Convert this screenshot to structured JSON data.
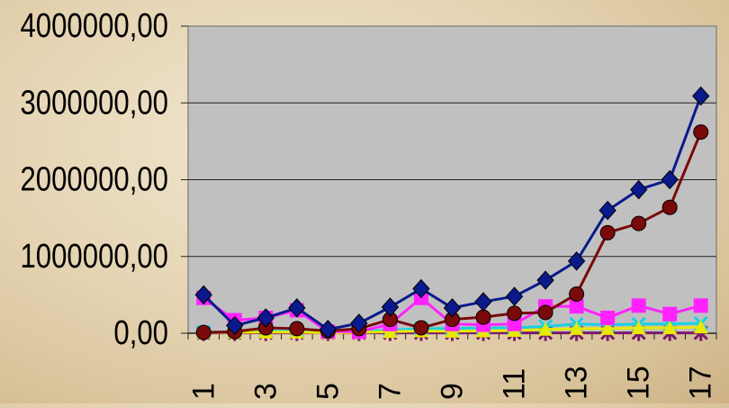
{
  "chart_data": {
    "type": "line",
    "x": [
      1,
      2,
      3,
      4,
      5,
      6,
      7,
      8,
      9,
      10,
      11,
      12,
      13,
      14,
      15,
      16,
      17
    ],
    "x_tick_labels": [
      "1",
      "3",
      "5",
      "7",
      "9",
      "11",
      "13",
      "15",
      "17"
    ],
    "y_tick_labels": [
      "0,00",
      "1000000,00",
      "2000000,00",
      "3000000,00",
      "4000000,00"
    ],
    "ylim": [
      0,
      4000000
    ],
    "grid": true,
    "series": [
      {
        "marker": "diamond",
        "color": "#0a1a8c",
        "values": [
          500000,
          100000,
          200000,
          330000,
          50000,
          130000,
          340000,
          580000,
          330000,
          410000,
          480000,
          690000,
          940000,
          1600000,
          1870000,
          2000000,
          3090000
        ]
      },
      {
        "marker": "circle",
        "color": "#7a0a0a",
        "values": [
          10000,
          20000,
          70000,
          60000,
          30000,
          60000,
          180000,
          70000,
          180000,
          210000,
          260000,
          270000,
          510000,
          1310000,
          1430000,
          1640000,
          2620000
        ]
      },
      {
        "marker": "square",
        "color": "#ff22ff",
        "values": [
          460000,
          170000,
          200000,
          300000,
          20000,
          20000,
          120000,
          460000,
          120000,
          110000,
          120000,
          350000,
          350000,
          200000,
          360000,
          250000,
          360000
        ]
      },
      {
        "marker": "triangle",
        "color": "#e8e800",
        "values": [
          10000,
          10000,
          15000,
          15000,
          5000,
          10000,
          20000,
          30000,
          25000,
          30000,
          35000,
          50000,
          60000,
          60000,
          70000,
          70000,
          80000
        ]
      },
      {
        "marker": "x",
        "color": "#1ad0e0",
        "values": [
          15000,
          20000,
          25000,
          30000,
          10000,
          20000,
          40000,
          60000,
          60000,
          70000,
          70000,
          90000,
          120000,
          110000,
          120000,
          120000,
          130000
        ]
      },
      {
        "marker": "asterisk",
        "color": "#7a1a6a",
        "values": [
          5000,
          5000,
          5000,
          5000,
          5000,
          5000,
          5000,
          5000,
          5000,
          5000,
          5000,
          5000,
          5000,
          5000,
          5000,
          5000,
          5000
        ]
      }
    ]
  }
}
